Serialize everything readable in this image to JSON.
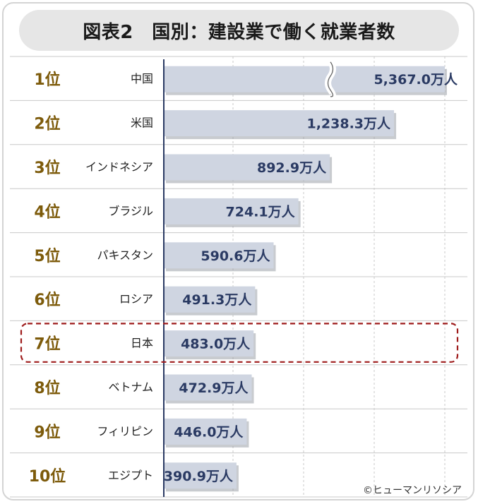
{
  "title": "図表2　国別：建設業で働く就業者数",
  "credit": "©ヒューマンリソシア",
  "colors": {
    "bar": "#cfd5e1",
    "value_text": "#2a3a63",
    "rank_text": "#7d5b0b",
    "axis": "#2a3a63",
    "grid": "#c8c8c8",
    "highlight": "#9e1b1b"
  },
  "chart_data": {
    "type": "bar",
    "orientation": "horizontal",
    "ranks": [
      "1位",
      "2位",
      "3位",
      "4位",
      "5位",
      "6位",
      "7位",
      "8位",
      "9位",
      "10位"
    ],
    "categories": [
      "中国",
      "米国",
      "インドネシア",
      "ブラジル",
      "パキスタン",
      "ロシア",
      "日本",
      "ベトナム",
      "フィリピン",
      "エジプト"
    ],
    "values": [
      5367.0,
      1238.3,
      892.9,
      724.1,
      590.6,
      491.3,
      483.0,
      472.9,
      446.0,
      390.9
    ],
    "value_labels": [
      "5,367.0万人",
      "1,238.3万人",
      "892.9万人",
      "724.1万人",
      "590.6万人",
      "491.3万人",
      "483.0万人",
      "472.9万人",
      "446.0万人",
      "390.9万人"
    ],
    "axis_break_on_first_bar": true,
    "highlighted_category": "日本",
    "grid": true
  }
}
